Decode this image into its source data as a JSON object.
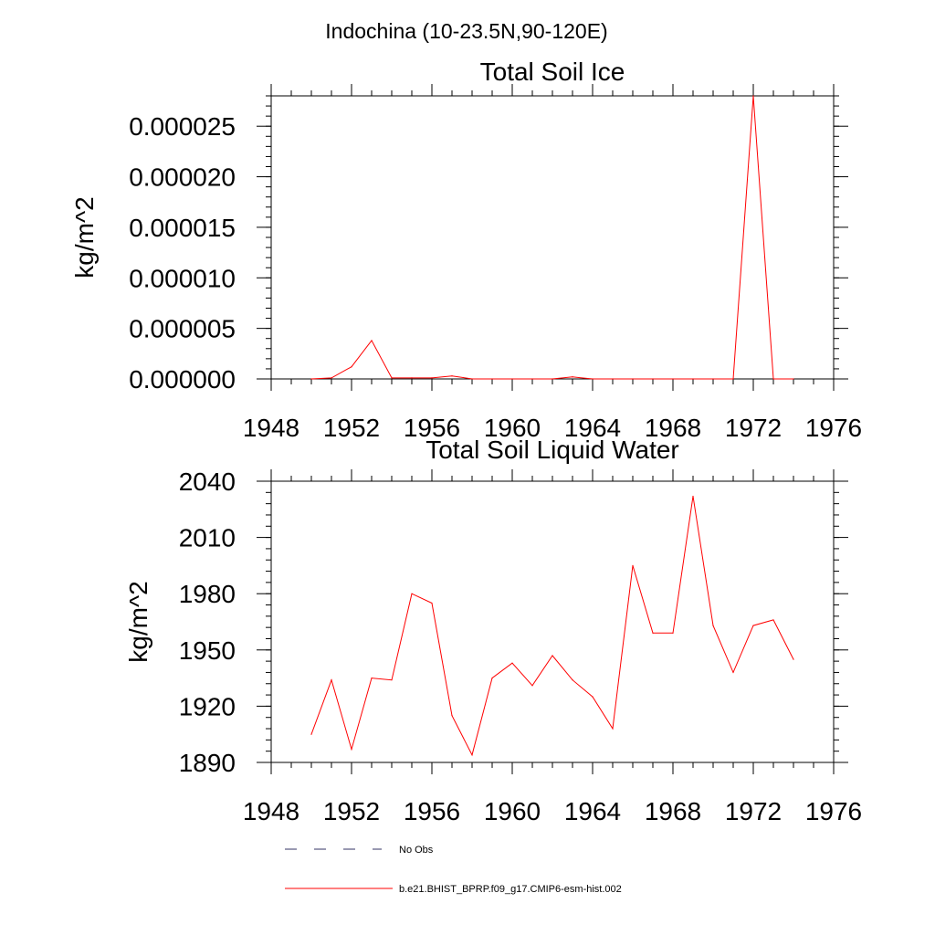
{
  "page_title": "Indochina (10-23.5N,90-120E)",
  "chart_data": [
    {
      "type": "line",
      "title": "Total Soil Ice",
      "ylabel": "kg/m^2",
      "xlabel": "",
      "xlim": [
        1948,
        1976
      ],
      "ylim": [
        0,
        2.8e-05
      ],
      "xticks": [
        1948,
        1952,
        1956,
        1960,
        1964,
        1968,
        1972,
        1976
      ],
      "xtick_labels": [
        "1948",
        "1952",
        "1956",
        "1960",
        "1964",
        "1968",
        "1972",
        "1976"
      ],
      "yticks": [
        0,
        5e-06,
        1e-05,
        1.5e-05,
        2e-05,
        2.5e-05
      ],
      "ytick_labels": [
        "0.000000",
        "0.000005",
        "0.000010",
        "0.000015",
        "0.000020",
        "0.000025"
      ],
      "series": [
        {
          "name": "b.e21.BHIST_BPRP.f09_g17.CMIP6-esm-hist.002",
          "color": "#ff0000",
          "x": [
            1950,
            1951,
            1952,
            1953,
            1954,
            1955,
            1956,
            1957,
            1958,
            1959,
            1960,
            1961,
            1962,
            1963,
            1964,
            1965,
            1966,
            1967,
            1968,
            1969,
            1970,
            1971,
            1972,
            1973,
            1974
          ],
          "y": [
            0,
            1e-07,
            1.2e-06,
            3.8e-06,
            1e-07,
            1e-07,
            1e-07,
            3e-07,
            0,
            0,
            0,
            0,
            0,
            2e-07,
            0,
            0,
            0,
            0,
            0,
            0,
            0,
            0,
            2.8e-05,
            0,
            0
          ]
        }
      ]
    },
    {
      "type": "line",
      "title": "Total Soil Liquid Water",
      "ylabel": "kg/m^2",
      "xlabel": "",
      "xlim": [
        1948,
        1976
      ],
      "ylim": [
        1890,
        2040
      ],
      "xticks": [
        1948,
        1952,
        1956,
        1960,
        1964,
        1968,
        1972,
        1976
      ],
      "xtick_labels": [
        "1948",
        "1952",
        "1956",
        "1960",
        "1964",
        "1968",
        "1972",
        "1976"
      ],
      "yticks": [
        1890,
        1920,
        1950,
        1980,
        2010,
        2040
      ],
      "ytick_labels": [
        "1890",
        "1920",
        "1950",
        "1980",
        "2010",
        "2040"
      ],
      "series": [
        {
          "name": "b.e21.BHIST_BPRP.f09_g17.CMIP6-esm-hist.002",
          "color": "#ff0000",
          "x": [
            1950,
            1951,
            1952,
            1953,
            1954,
            1955,
            1956,
            1957,
            1958,
            1959,
            1960,
            1961,
            1962,
            1963,
            1964,
            1965,
            1966,
            1967,
            1968,
            1969,
            1970,
            1971,
            1972,
            1973,
            1974
          ],
          "y": [
            1905,
            1934,
            1897,
            1935,
            1934,
            1980,
            1975,
            1915,
            1894,
            1935,
            1943,
            1931,
            1947,
            1934,
            1925,
            1908,
            1995,
            1959,
            1959,
            2032,
            1963,
            1938,
            1963,
            1966,
            1945
          ]
        }
      ]
    }
  ],
  "legend": {
    "placement": "bottom",
    "items": [
      {
        "label": "No Obs",
        "color": "#333366",
        "style": "dashed"
      },
      {
        "label": "b.e21.BHIST_BPRP.f09_g17.CMIP6-esm-hist.002",
        "color": "#ff0000",
        "style": "solid"
      }
    ]
  }
}
